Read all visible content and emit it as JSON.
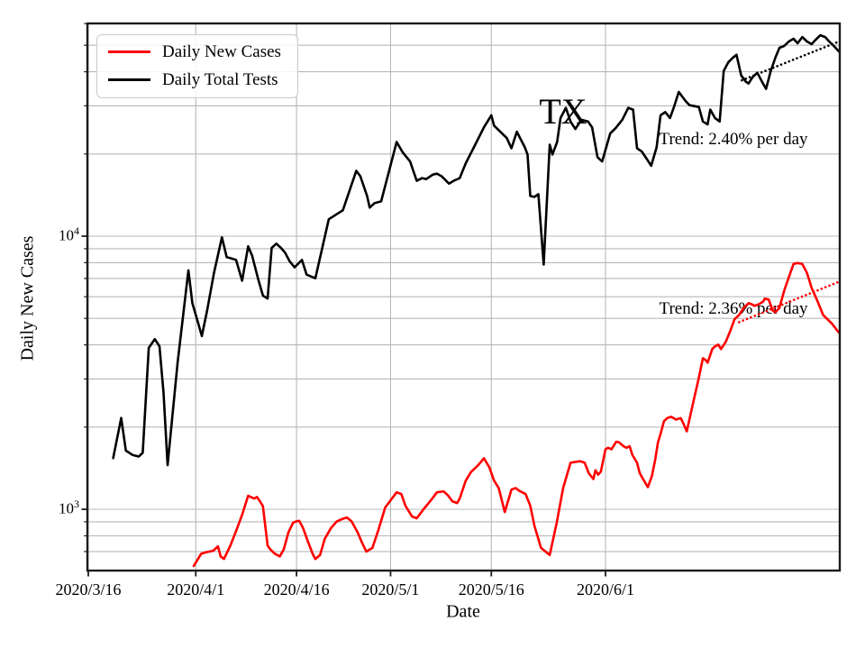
{
  "figure": {
    "xlabel": "Date",
    "ylabel": "Daily New Cases",
    "background_color": "#ffffff",
    "grid_color": "#b8b8b8",
    "frame_color": "#1c1c1c"
  },
  "legend": {
    "items": [
      {
        "label": "Daily New Cases",
        "color": "#ff0000"
      },
      {
        "label": "Daily Total Tests",
        "color": "#000000"
      }
    ]
  },
  "annotations": {
    "tests_trend_text": "Trend: 2.40% per day",
    "cases_trend_text": "Trend: 2.36% per day"
  },
  "chart_data": {
    "type": "line",
    "title": "TX",
    "xlabel": "Date",
    "ylabel": "Daily New Cases",
    "y_scale": "log",
    "grid": true,
    "legend_position": "upper left",
    "x_unit": "days since 2020/3/16",
    "x_ticks": [
      {
        "day": 0,
        "label": "2020/3/16"
      },
      {
        "day": 16,
        "label": "2020/4/1"
      },
      {
        "day": 31,
        "label": "2020/4/16"
      },
      {
        "day": 45,
        "label": "2020/5/1"
      },
      {
        "day": 60,
        "label": "2020/5/16"
      },
      {
        "day": 77,
        "label": "2020/6/1"
      }
    ],
    "y_ticks": [
      1000,
      10000
    ],
    "ylim": [
      610,
      60000
    ],
    "xlim_days": [
      -0.2,
      112
    ],
    "series": [
      {
        "name": "Daily Total Tests",
        "color": "#000000",
        "style": "solid",
        "points": [
          [
            3.7,
            1540
          ],
          [
            4.9,
            2160
          ],
          [
            5.6,
            1640
          ],
          [
            6.6,
            1580
          ],
          [
            7.5,
            1560
          ],
          [
            8.1,
            1610
          ],
          [
            9.0,
            3900
          ],
          [
            9.9,
            4200
          ],
          [
            10.6,
            3950
          ],
          [
            11.2,
            2670
          ],
          [
            11.8,
            1450
          ],
          [
            13.3,
            3440
          ],
          [
            14.9,
            7500
          ],
          [
            15.5,
            5680
          ],
          [
            16.2,
            4950
          ],
          [
            16.9,
            4310
          ],
          [
            17.7,
            5350
          ],
          [
            18.7,
            7310
          ],
          [
            19.9,
            9900
          ],
          [
            20.6,
            8380
          ],
          [
            21.3,
            8290
          ],
          [
            22.0,
            8180
          ],
          [
            22.9,
            6870
          ],
          [
            23.8,
            9180
          ],
          [
            24.4,
            8470
          ],
          [
            25.3,
            6950
          ],
          [
            26.0,
            6060
          ],
          [
            26.7,
            5910
          ],
          [
            27.3,
            9050
          ],
          [
            28.0,
            9390
          ],
          [
            28.7,
            9050
          ],
          [
            29.3,
            8700
          ],
          [
            30.0,
            8080
          ],
          [
            30.7,
            7690
          ],
          [
            31.8,
            8180
          ],
          [
            32.5,
            7230
          ],
          [
            33.8,
            7010
          ],
          [
            35.8,
            11540
          ],
          [
            37.9,
            12440
          ],
          [
            39.9,
            17350
          ],
          [
            40.5,
            16570
          ],
          [
            41.5,
            14030
          ],
          [
            41.9,
            12720
          ],
          [
            42.6,
            13210
          ],
          [
            43.6,
            13410
          ],
          [
            45.9,
            22130
          ],
          [
            46.8,
            20270
          ],
          [
            47.9,
            18770
          ],
          [
            48.9,
            15940
          ],
          [
            49.7,
            16310
          ],
          [
            50.3,
            16180
          ],
          [
            51.3,
            16800
          ],
          [
            51.9,
            16930
          ],
          [
            52.6,
            16570
          ],
          [
            53.7,
            15580
          ],
          [
            54.4,
            15940
          ],
          [
            55.3,
            16310
          ],
          [
            56.2,
            18490
          ],
          [
            57.6,
            21620
          ],
          [
            58.9,
            25040
          ],
          [
            60.0,
            27710
          ],
          [
            60.4,
            25410
          ],
          [
            61.6,
            23770
          ],
          [
            62.3,
            22880
          ],
          [
            63.0,
            20980
          ],
          [
            63.8,
            24120
          ],
          [
            65.0,
            21140
          ],
          [
            65.4,
            19910
          ],
          [
            65.8,
            14030
          ],
          [
            66.4,
            13920
          ],
          [
            67.0,
            14240
          ],
          [
            67.8,
            7870
          ],
          [
            68.7,
            21620
          ],
          [
            69.1,
            19910
          ],
          [
            69.8,
            22130
          ],
          [
            70.3,
            27080
          ],
          [
            71.1,
            29500
          ],
          [
            71.8,
            26290
          ],
          [
            72.5,
            24680
          ],
          [
            73.4,
            26680
          ],
          [
            74.4,
            26290
          ],
          [
            75.0,
            25040
          ],
          [
            75.8,
            19460
          ],
          [
            76.5,
            18770
          ],
          [
            77.7,
            23770
          ],
          [
            78.5,
            24860
          ],
          [
            79.5,
            26680
          ],
          [
            80.4,
            29500
          ],
          [
            81.1,
            29060
          ],
          [
            81.7,
            20980
          ],
          [
            82.4,
            20420
          ],
          [
            83.1,
            19240
          ],
          [
            83.8,
            18100
          ],
          [
            84.6,
            21140
          ],
          [
            85.2,
            27710
          ],
          [
            85.9,
            28470
          ],
          [
            86.6,
            27080
          ],
          [
            87.2,
            29720
          ],
          [
            87.9,
            33730
          ],
          [
            88.9,
            31290
          ],
          [
            89.5,
            30170
          ],
          [
            90.9,
            29720
          ],
          [
            91.5,
            26290
          ],
          [
            92.2,
            25660
          ],
          [
            92.6,
            29060
          ],
          [
            93.3,
            27080
          ],
          [
            94.0,
            26290
          ],
          [
            94.6,
            40260
          ],
          [
            95.3,
            43380
          ],
          [
            96.0,
            45090
          ],
          [
            96.5,
            46130
          ],
          [
            97.2,
            38780
          ],
          [
            97.9,
            36770
          ],
          [
            98.3,
            36220
          ],
          [
            98.9,
            38200
          ],
          [
            99.6,
            39650
          ],
          [
            100.3,
            36770
          ],
          [
            100.9,
            34620
          ],
          [
            101.6,
            40260
          ],
          [
            102.3,
            45090
          ],
          [
            102.9,
            48950
          ],
          [
            103.6,
            49690
          ],
          [
            104.3,
            51620
          ],
          [
            105.0,
            52800
          ],
          [
            105.6,
            50850
          ],
          [
            106.3,
            53600
          ],
          [
            107.0,
            51620
          ],
          [
            107.7,
            50470
          ],
          [
            108.3,
            52400
          ],
          [
            109.0,
            54410
          ],
          [
            109.7,
            53600
          ],
          [
            110.3,
            51620
          ],
          [
            111.0,
            49690
          ],
          [
            111.9,
            47500
          ]
        ]
      },
      {
        "name": "Daily New Cases",
        "color": "#ff0000",
        "style": "solid",
        "points": [
          [
            15.7,
            620
          ],
          [
            16.8,
            687
          ],
          [
            17.5,
            696
          ],
          [
            18.6,
            705
          ],
          [
            19.3,
            732
          ],
          [
            19.7,
            672
          ],
          [
            20.2,
            658
          ],
          [
            21.1,
            732
          ],
          [
            22.0,
            832
          ],
          [
            22.9,
            954
          ],
          [
            23.8,
            1121
          ],
          [
            24.7,
            1095
          ],
          [
            25.1,
            1109
          ],
          [
            25.5,
            1075
          ],
          [
            26.0,
            1026
          ],
          [
            26.7,
            737
          ],
          [
            27.1,
            713
          ],
          [
            27.8,
            687
          ],
          [
            28.5,
            672
          ],
          [
            29.1,
            713
          ],
          [
            29.8,
            823
          ],
          [
            30.5,
            894
          ],
          [
            31.0,
            903
          ],
          [
            31.4,
            907
          ],
          [
            32.0,
            851
          ],
          [
            32.7,
            761
          ],
          [
            33.4,
            687
          ],
          [
            33.8,
            658
          ],
          [
            34.5,
            680
          ],
          [
            35.2,
            779
          ],
          [
            36.1,
            851
          ],
          [
            37.0,
            903
          ],
          [
            37.9,
            923
          ],
          [
            38.5,
            933
          ],
          [
            39.2,
            903
          ],
          [
            40.1,
            823
          ],
          [
            40.8,
            751
          ],
          [
            41.4,
            700
          ],
          [
            42.3,
            722
          ],
          [
            43.2,
            841
          ],
          [
            44.2,
            1015
          ],
          [
            45.9,
            1154
          ],
          [
            46.6,
            1137
          ],
          [
            47.2,
            1031
          ],
          [
            48.2,
            941
          ],
          [
            48.9,
            927
          ],
          [
            49.9,
            1000
          ],
          [
            51.0,
            1078
          ],
          [
            51.9,
            1154
          ],
          [
            52.9,
            1163
          ],
          [
            53.6,
            1120
          ],
          [
            54.2,
            1070
          ],
          [
            54.9,
            1054
          ],
          [
            55.3,
            1095
          ],
          [
            56.2,
            1273
          ],
          [
            57.0,
            1372
          ],
          [
            58.0,
            1447
          ],
          [
            58.9,
            1537
          ],
          [
            59.7,
            1426
          ],
          [
            60.4,
            1273
          ],
          [
            61.1,
            1196
          ],
          [
            62.0,
            977
          ],
          [
            63.0,
            1180
          ],
          [
            63.6,
            1196
          ],
          [
            64.3,
            1163
          ],
          [
            65.1,
            1137
          ],
          [
            65.8,
            1031
          ],
          [
            66.4,
            873
          ],
          [
            67.4,
            723
          ],
          [
            68.7,
            680
          ],
          [
            69.7,
            884
          ],
          [
            70.7,
            1196
          ],
          [
            71.8,
            1480
          ],
          [
            73.2,
            1500
          ],
          [
            73.9,
            1480
          ],
          [
            74.5,
            1356
          ],
          [
            75.2,
            1290
          ],
          [
            75.5,
            1390
          ],
          [
            75.9,
            1339
          ],
          [
            76.3,
            1372
          ],
          [
            77.0,
            1659
          ],
          [
            77.4,
            1679
          ],
          [
            77.9,
            1659
          ],
          [
            78.6,
            1768
          ],
          [
            79.0,
            1760
          ],
          [
            79.7,
            1701
          ],
          [
            80.1,
            1679
          ],
          [
            80.6,
            1701
          ],
          [
            81.0,
            1583
          ],
          [
            81.7,
            1480
          ],
          [
            82.1,
            1356
          ],
          [
            82.6,
            1290
          ],
          [
            83.3,
            1206
          ],
          [
            83.9,
            1321
          ],
          [
            84.4,
            1520
          ],
          [
            84.8,
            1750
          ],
          [
            85.3,
            1930
          ],
          [
            85.7,
            2103
          ],
          [
            86.2,
            2157
          ],
          [
            86.8,
            2180
          ],
          [
            87.5,
            2130
          ],
          [
            88.2,
            2157
          ],
          [
            88.6,
            2060
          ],
          [
            89.1,
            1930
          ],
          [
            90.2,
            2549
          ],
          [
            90.9,
            3031
          ],
          [
            91.5,
            3573
          ],
          [
            91.9,
            3520
          ],
          [
            92.2,
            3441
          ],
          [
            92.9,
            3862
          ],
          [
            93.3,
            3948
          ],
          [
            93.8,
            4007
          ],
          [
            94.2,
            3862
          ],
          [
            94.9,
            4098
          ],
          [
            95.6,
            4518
          ],
          [
            96.2,
            4957
          ],
          [
            96.9,
            5146
          ],
          [
            97.6,
            5470
          ],
          [
            98.3,
            5685
          ],
          [
            98.7,
            5642
          ],
          [
            99.2,
            5556
          ],
          [
            99.9,
            5642
          ],
          [
            100.5,
            5770
          ],
          [
            100.7,
            5905
          ],
          [
            101.3,
            5860
          ],
          [
            101.9,
            5344
          ],
          [
            102.3,
            5264
          ],
          [
            102.9,
            5470
          ],
          [
            103.6,
            6313
          ],
          [
            104.3,
            7069
          ],
          [
            105.0,
            7916
          ],
          [
            105.6,
            7975
          ],
          [
            106.3,
            7916
          ],
          [
            107.0,
            7333
          ],
          [
            107.7,
            6459
          ],
          [
            108.4,
            5905
          ],
          [
            109.4,
            5146
          ],
          [
            110.7,
            4789
          ],
          [
            111.9,
            4435
          ]
        ]
      },
      {
        "name": "Tests trend (2.40% per day)",
        "color": "#000000",
        "style": "dotted",
        "points": [
          [
            97.3,
            37200
          ],
          [
            111.9,
            51600
          ]
        ]
      },
      {
        "name": "Cases trend (2.36% per day)",
        "color": "#ff0000",
        "style": "dotted",
        "points": [
          [
            96.9,
            4845
          ],
          [
            111.9,
            6808
          ]
        ]
      }
    ]
  }
}
